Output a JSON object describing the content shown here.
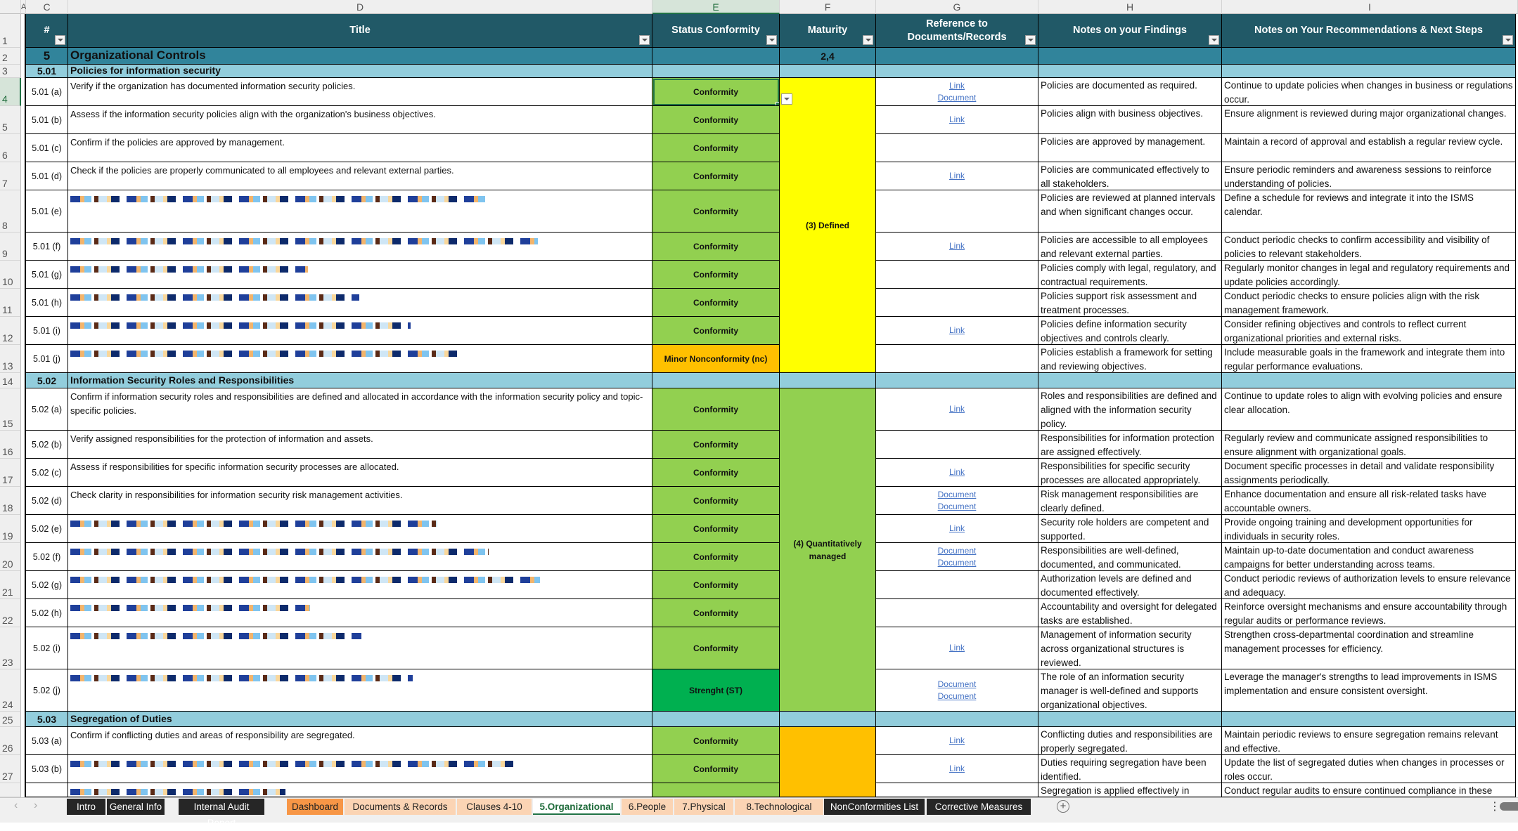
{
  "column_headers": {
    "A": "A",
    "C": "C",
    "D": "D",
    "E": "E",
    "F": "F",
    "G": "G",
    "H": "H",
    "I": "I"
  },
  "table_headers": {
    "num": "#",
    "title": "Title",
    "status": "Status Conformity",
    "maturity": "Maturity",
    "reference": "Reference to Documents/Records",
    "findings": "Notes on your Findings",
    "recommendations": "Notes on Your Recommendations & Next Steps"
  },
  "section": {
    "num": "5",
    "title": "Organizational Controls",
    "maturity": "2,4"
  },
  "row_numbers": [
    "1",
    "2",
    "3",
    "4",
    "5",
    "6",
    "7",
    "8",
    "9",
    "10",
    "11",
    "12",
    "13",
    "14",
    "15",
    "16",
    "17",
    "18",
    "19",
    "20",
    "21",
    "22",
    "23",
    "24",
    "25",
    "26",
    "27"
  ],
  "groups": [
    {
      "num": "5.01",
      "title": "Policies for information security",
      "maturity": "(3) Defined",
      "maturity_color": "#ffff00"
    },
    {
      "num": "5.02",
      "title": "Information Security Roles and Responsibilities",
      "maturity": "(4) Quantitatively managed",
      "maturity_color": "#92d050"
    },
    {
      "num": "5.03",
      "title": "Segregation of Duties",
      "maturity": "",
      "maturity_color": "#ffc000"
    }
  ],
  "rows": [
    {
      "id": "5.01 (a)",
      "title": "Verify if the organization has documented information security policies.",
      "status": "Conformity",
      "refs": [
        "Link",
        "Document"
      ],
      "finding": "Policies are documented as required.",
      "rec": "Continue to update policies when changes in business or regulations occur."
    },
    {
      "id": "5.01 (b)",
      "title": "Assess if the information security policies align with the organization's business objectives.",
      "status": "Conformity",
      "refs": [
        "Link"
      ],
      "finding": "Policies align with business objectives.",
      "rec": "Ensure alignment is reviewed during major organizational changes."
    },
    {
      "id": "5.01 (c)",
      "title": "Confirm if the policies are approved by management.",
      "status": "Conformity",
      "refs": [],
      "finding": "Policies are approved by management.",
      "rec": "Maintain a record of approval and establish a regular review cycle."
    },
    {
      "id": "5.01 (d)",
      "title": "Check if the policies are properly communicated to all employees and relevant external parties.",
      "status": "Conformity",
      "refs": [
        "Link"
      ],
      "finding": "Policies are communicated effectively to all stakeholders.",
      "rec": "Ensure periodic reminders and awareness sessions to reinforce understanding of policies."
    },
    {
      "id": "5.01 (e)",
      "title": "",
      "status": "Conformity",
      "refs": [],
      "finding": "Policies are reviewed at planned intervals and when significant changes occur.",
      "rec": "Define a schedule for reviews and integrate it into the ISMS calendar."
    },
    {
      "id": "5.01 (f)",
      "title": "",
      "status": "Conformity",
      "refs": [
        "Link"
      ],
      "finding": "Policies are accessible to all employees and relevant external parties.",
      "rec": "Conduct periodic checks to confirm accessibility and visibility of policies to relevant stakeholders."
    },
    {
      "id": "5.01 (g)",
      "title": "",
      "status": "Conformity",
      "refs": [],
      "finding": "Policies comply with legal, regulatory, and contractual requirements.",
      "rec": "Regularly monitor changes in legal and regulatory requirements and update policies accordingly."
    },
    {
      "id": "5.01 (h)",
      "title": "",
      "status": "Conformity",
      "refs": [],
      "finding": "Policies support risk assessment and treatment processes.",
      "rec": "Conduct periodic checks to ensure policies align with the risk management framework."
    },
    {
      "id": "5.01 (i)",
      "title": "",
      "status": "Conformity",
      "refs": [
        "Link"
      ],
      "finding": "Policies define information security objectives and controls clearly.",
      "rec": "Consider refining objectives and controls to reflect current organizational priorities and external risks."
    },
    {
      "id": "5.01 (j)",
      "title": "",
      "status": "Minor Nonconformity (nc)",
      "refs": [],
      "finding": "Policies establish a framework for setting and reviewing objectives.",
      "rec": "Include measurable goals in the framework and integrate them into regular performance evaluations."
    },
    {
      "id": "5.02 (a)",
      "title": "Confirm if information security roles and responsibilities are defined and allocated in accordance with the information security policy and topic-specific policies.",
      "status": "Conformity",
      "refs": [
        "Link"
      ],
      "finding": "Roles and responsibilities are defined and aligned with the information security policy.",
      "rec": "Continue to update roles to align with evolving policies and ensure clear allocation."
    },
    {
      "id": "5.02 (b)",
      "title": "Verify assigned responsibilities for the protection of information and assets.",
      "status": "Conformity",
      "refs": [],
      "finding": "Responsibilities for information protection are assigned effectively.",
      "rec": "Regularly review and communicate assigned responsibilities to ensure alignment with organizational goals."
    },
    {
      "id": "5.02 (c)",
      "title": "Assess if responsibilities for specific information security processes are allocated.",
      "status": "Conformity",
      "refs": [
        "Link"
      ],
      "finding": "Responsibilities for specific security processes are allocated appropriately.",
      "rec": "Document specific processes in detail and validate responsibility assignments periodically."
    },
    {
      "id": "5.02 (d)",
      "title": "Check clarity in responsibilities for information security risk management activities.",
      "status": "Conformity",
      "refs": [
        "Document",
        "Document"
      ],
      "finding": "Risk management responsibilities are clearly defined.",
      "rec": "Enhance documentation and ensure all risk-related tasks have accountable owners."
    },
    {
      "id": "5.02 (e)",
      "title": "",
      "status": "Conformity",
      "refs": [
        "Link"
      ],
      "finding": "Security role holders are competent and supported.",
      "rec": "Provide ongoing training and development opportunities for individuals in security roles."
    },
    {
      "id": "5.02 (f)",
      "title": "",
      "status": "Conformity",
      "refs": [
        "Document",
        "Document"
      ],
      "finding": "Responsibilities are well-defined, documented, and communicated.",
      "rec": "Maintain up-to-date documentation and conduct awareness campaigns for better understanding across teams."
    },
    {
      "id": "5.02 (g)",
      "title": "",
      "status": "Conformity",
      "refs": [],
      "finding": "Authorization levels are defined and documented effectively.",
      "rec": "Conduct periodic reviews of authorization levels to ensure relevance and adequacy."
    },
    {
      "id": "5.02 (h)",
      "title": "",
      "status": "Conformity",
      "refs": [],
      "finding": "Accountability and oversight for delegated tasks are established.",
      "rec": "Reinforce oversight mechanisms and ensure accountability through regular audits or performance reviews."
    },
    {
      "id": "5.02 (i)",
      "title": "",
      "status": "Conformity",
      "refs": [
        "Link"
      ],
      "finding": "Management of information security across organizational structures is reviewed.",
      "rec": "Strengthen cross-departmental coordination and streamline management processes for efficiency."
    },
    {
      "id": "5.02 (j)",
      "title": "",
      "status": "Strenght (ST)",
      "refs": [
        "Document",
        "Document"
      ],
      "finding": "The role of an information security manager is well-defined and supports organizational objectives.",
      "rec": "Leverage the manager's strengths to lead improvements in ISMS implementation and ensure consistent oversight."
    },
    {
      "id": "5.03 (a)",
      "title": "Confirm if conflicting duties and areas of responsibility are segregated.",
      "status": "Conformity",
      "refs": [
        "Link"
      ],
      "finding": "Conflicting duties and responsibilities are properly segregated.",
      "rec": "Maintain periodic reviews to ensure segregation remains relevant and effective."
    },
    {
      "id": "5.03 (b)",
      "title": "",
      "status": "Conformity",
      "refs": [
        "Link"
      ],
      "finding": "Duties requiring segregation have been identified.",
      "rec": "Update the list of segregated duties when changes in processes or roles occur."
    },
    {
      "id": "",
      "title": "",
      "status": "",
      "refs": [],
      "finding": "Segregation is applied effectively in",
      "rec": "Conduct regular audits to ensure continued compliance in these"
    }
  ],
  "status_colors": {
    "Conformity": "#92d050",
    "Minor Nonconformity (nc)": "#ffc000",
    "Strenght (ST)": "#00b050"
  },
  "sheet_tabs": [
    {
      "label": "Intro",
      "style": "dark"
    },
    {
      "label": "General Info",
      "style": "dark"
    },
    {
      "label": "Internal Audit Report",
      "style": "dark"
    },
    {
      "label": "Dashboard",
      "style": "orange"
    },
    {
      "label": "Documents & Records",
      "style": "peach"
    },
    {
      "label": "Clauses 4-10",
      "style": "peach"
    },
    {
      "label": "5.Organizational",
      "style": "active"
    },
    {
      "label": "6.People",
      "style": "peach"
    },
    {
      "label": "7.Physical",
      "style": "peach"
    },
    {
      "label": "8.Technological",
      "style": "peach"
    },
    {
      "label": "NonConformities List",
      "style": "dark"
    },
    {
      "label": "Corrective Measures",
      "style": "dark"
    }
  ],
  "tab_nav": {
    "prev": "‹",
    "next": "›",
    "add": "+",
    "more": "⋮"
  }
}
